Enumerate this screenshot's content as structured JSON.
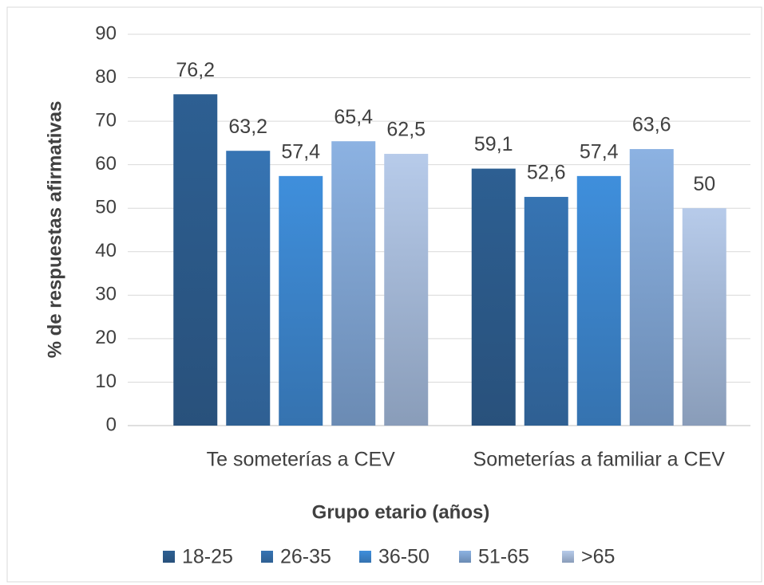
{
  "chart_data": {
    "type": "bar",
    "categories": [
      "Te someterías a CEV",
      "Someterías a familiar a CEV"
    ],
    "series": [
      {
        "name": "18-25",
        "color": "#2d5f92",
        "values": [
          76.2,
          59.1
        ],
        "value_labels": [
          "76,2",
          "59,1"
        ]
      },
      {
        "name": "26-35",
        "color": "#3674b3",
        "values": [
          63.2,
          52.6
        ],
        "value_labels": [
          "63,2",
          "52,6"
        ]
      },
      {
        "name": "36-50",
        "color": "#3f8fdc",
        "values": [
          57.4,
          57.4
        ],
        "value_labels": [
          "57,4",
          "57,4"
        ]
      },
      {
        "name": "51-65",
        "color": "#8cb2e2",
        "values": [
          65.4,
          63.6
        ],
        "value_labels": [
          "65,4",
          "63,6"
        ]
      },
      {
        "name": ">65",
        "color": "#b7cbea",
        "values": [
          62.5,
          50
        ],
        "value_labels": [
          "62,5",
          "50"
        ]
      }
    ],
    "y_label": "% de respuestas afirmativas",
    "x_label": "Grupo etario (años)",
    "ylim": [
      0,
      90
    ],
    "yticks": [
      0,
      10,
      20,
      30,
      40,
      50,
      60,
      70,
      80,
      90
    ],
    "grid": true,
    "legend": "bottom"
  }
}
